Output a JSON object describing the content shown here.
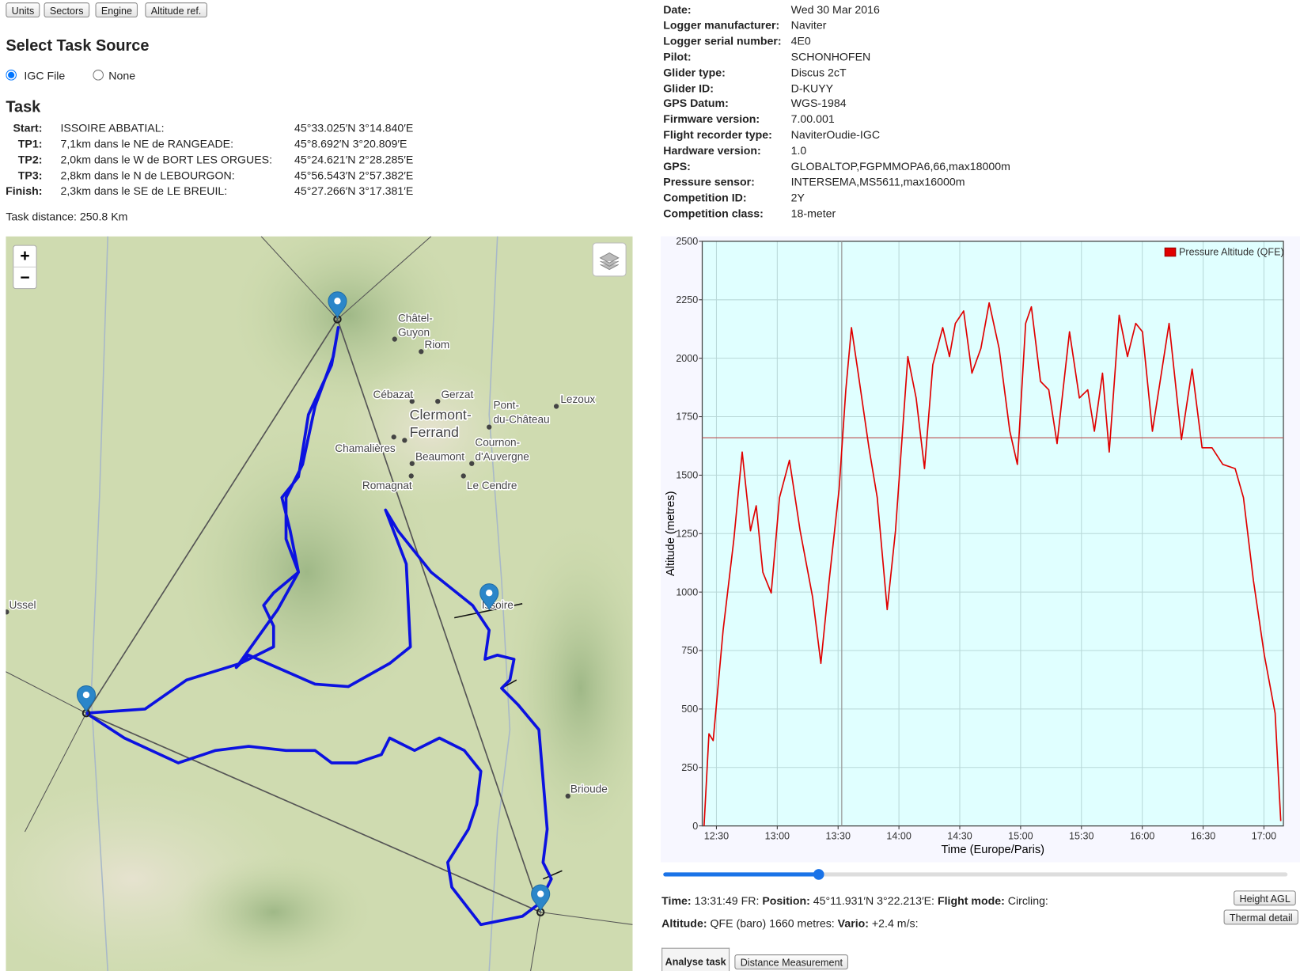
{
  "toolbar": {
    "buttons": [
      "Units",
      "Sectors",
      "Engine",
      "Altitude ref."
    ]
  },
  "task_source": {
    "title": "Select Task Source",
    "options": [
      "IGC File",
      "None"
    ]
  },
  "task": {
    "title": "Task",
    "rows": [
      [
        "Start:",
        "ISSOIRE ABBATIAL:",
        "45°33.025′N 3°14.840′E"
      ],
      [
        "TP1:",
        "7,1km dans le NE de RANGEADE:",
        "45°8.692′N 3°20.809′E"
      ],
      [
        "TP2:",
        "2,0km dans le W de BORT LES ORGUES:",
        "45°24.621′N 2°28.285′E"
      ],
      [
        "TP3:",
        "2,8km dans le N de LEBOURGON:",
        "45°56.543′N 2°57.382′E"
      ],
      [
        "Finish:",
        "2,3km dans le SE de LE BREUIL:",
        "45°27.266′N 3°17.381′E"
      ]
    ],
    "distance": "Task distance: 250.8 Km"
  },
  "flight_info": [
    [
      "Date:",
      "Wed 30 Mar 2016"
    ],
    [
      "Logger manufacturer:",
      "Naviter"
    ],
    [
      "Logger serial number:",
      "4E0"
    ],
    [
      "Pilot:",
      "SCHONHOFEN"
    ],
    [
      "Glider type:",
      "Discus 2cT"
    ],
    [
      "Glider ID:",
      "D-KUYY"
    ],
    [
      "GPS Datum:",
      "WGS-1984"
    ],
    [
      "Firmware version:",
      "7.00.001"
    ],
    [
      "Flight recorder type:",
      "NaviterOudie-IGC"
    ],
    [
      "Hardware version:",
      "1.0"
    ],
    [
      "GPS:",
      "GLOBALTOP,FGPMMOPA6,66,max18000m"
    ],
    [
      "Pressure sensor:",
      "INTERSEMA,MS5611,max16000m"
    ],
    [
      "Competition ID:",
      "2Y"
    ],
    [
      "Competition class:",
      "18-meter"
    ]
  ],
  "map": {
    "zoom": [
      "+",
      "−"
    ],
    "places": [
      "Châtel-",
      "Guyon",
      "Riom",
      "Cébazat",
      "Gerzat",
      "Clermont-",
      "Ferrand",
      "Pont-",
      "du-Château",
      "Lezoux",
      "Chamalières",
      "Beaumont",
      "Cournon-",
      "d'Auvergne",
      "Romagnat",
      "Le Cendre",
      "Ussel",
      "Issoire",
      "Brioude"
    ]
  },
  "chart_data": {
    "type": "line",
    "x_label": "Time (Europe/Paris)",
    "y_label": "Altitude (metres)",
    "xlim": [
      743,
      1029.6
    ],
    "ylim": [
      0,
      2500
    ],
    "xticks": [
      {
        "value": 750,
        "label": "12:30"
      },
      {
        "value": 780,
        "label": "13:00"
      },
      {
        "value": 810,
        "label": "13:30"
      },
      {
        "value": 840,
        "label": "14:00"
      },
      {
        "value": 870,
        "label": "14:30"
      },
      {
        "value": 900,
        "label": "15:00"
      },
      {
        "value": 930,
        "label": "15:30"
      },
      {
        "value": 960,
        "label": "16:00"
      },
      {
        "value": 990,
        "label": "16:30"
      },
      {
        "value": 1020,
        "label": "17:00"
      }
    ],
    "yticks": [
      0,
      250,
      500,
      750,
      1000,
      1250,
      1500,
      1750,
      2000,
      2250,
      2500
    ],
    "grid": true,
    "legend": "top-right",
    "x": [
      743.9,
      746.3,
      748.4,
      753.3,
      758.6,
      762.7,
      766.8,
      769.6,
      772.9,
      777,
      781.1,
      786,
      791.3,
      797.4,
      801.5,
      805.6,
      810.5,
      813.8,
      816.6,
      819.9,
      825.2,
      829.3,
      834.2,
      838.3,
      844.4,
      848.5,
      852.6,
      856.7,
      861.6,
      864.9,
      867.8,
      871.9,
      876,
      880.4,
      884.5,
      889.4,
      894.7,
      898.4,
      902.5,
      905.3,
      909.8,
      913.9,
      918,
      924.1,
      929,
      933.1,
      936.4,
      940.4,
      943.7,
      948.6,
      952.7,
      956.8,
      960.1,
      965,
      973.2,
      979.3,
      984.6,
      989.5,
      994.4,
      999.7,
      1005.8,
      1009.9,
      1014.8,
      1020.2,
      1025.5,
      1028.3
    ],
    "series": [
      {
        "name": "Pressure Altitude (QFE)",
        "color": "#e00000",
        "values": [
          0,
          394,
          365,
          837,
          1227,
          1599,
          1262,
          1369,
          1085,
          996,
          1404,
          1564,
          1262,
          979,
          695,
          1050,
          1440,
          1865,
          2131,
          1936,
          1617,
          1404,
          925,
          1262,
          2007,
          1830,
          1528,
          1972,
          2131,
          2007,
          2149,
          2202,
          1936,
          2042,
          2237,
          2042,
          1688,
          1546,
          2149,
          2220,
          1901,
          1865,
          1635,
          2113,
          1830,
          1865,
          1688,
          1936,
          1599,
          2184,
          2007,
          2149,
          2113,
          1688,
          2149,
          1652,
          1954,
          1617,
          1617,
          1546,
          1528,
          1404,
          1050,
          730,
          482,
          21
        ]
      }
    ],
    "cursor": {
      "x": 811.8,
      "y": 1660
    }
  },
  "status": {
    "time_label": "Time:",
    "time": "13:31:49 FR:",
    "position_label": "Position:",
    "position": "45°11.931′N 3°22.213′E:",
    "mode_label": "Flight mode:",
    "mode": "Circling:",
    "altitude_label": "Altitude:",
    "altitude": "QFE (baro) 1660 metres:",
    "vario_label": "Vario:",
    "vario": "+2.4 m/s:"
  },
  "side_buttons": [
    "Height AGL",
    "Thermal detail"
  ],
  "tabs": [
    "Analyse task",
    "Distance Measurement"
  ]
}
